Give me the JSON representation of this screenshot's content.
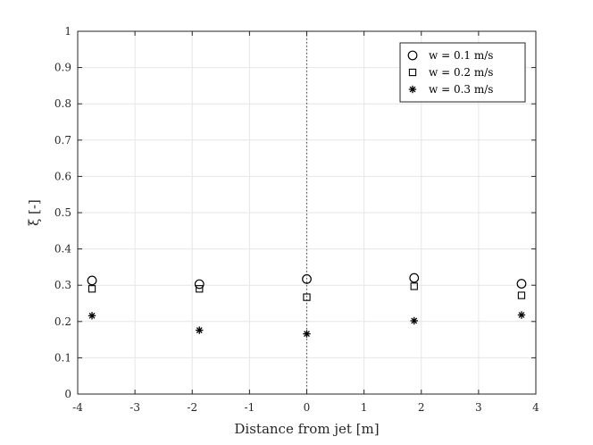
{
  "chart_data": {
    "type": "scatter",
    "title": "",
    "xlabel": "Distance from jet [m]",
    "ylabel": "ξ [-]",
    "xlim": [
      -4,
      4
    ],
    "ylim": [
      0,
      1
    ],
    "x_ticks": [
      "-4",
      "-3",
      "-2",
      "-1",
      "0",
      "1",
      "2",
      "3",
      "4"
    ],
    "y_ticks": [
      "0",
      "0.1",
      "0.2",
      "0.3",
      "0.4",
      "0.5",
      "0.6",
      "0.7",
      "0.8",
      "0.9",
      "1"
    ],
    "grid": true,
    "reference_line": {
      "x": 0,
      "style": "dotted"
    },
    "legend_position": "top-right",
    "series": [
      {
        "name": "w = 0.1 m/s",
        "marker": "circle",
        "x": [
          -3.75,
          -1.875,
          0,
          1.875,
          3.75
        ],
        "y": [
          0.313,
          0.303,
          0.317,
          0.32,
          0.304
        ]
      },
      {
        "name": "w = 0.2 m/s",
        "marker": "square",
        "x": [
          -3.75,
          -1.875,
          0,
          1.875,
          3.75
        ],
        "y": [
          0.29,
          0.29,
          0.267,
          0.297,
          0.272
        ]
      },
      {
        "name": "w = 0.3 m/s",
        "marker": "asterisk",
        "x": [
          -3.75,
          -1.875,
          0,
          1.875,
          3.75
        ],
        "y": [
          0.216,
          0.176,
          0.166,
          0.202,
          0.218
        ]
      }
    ]
  }
}
